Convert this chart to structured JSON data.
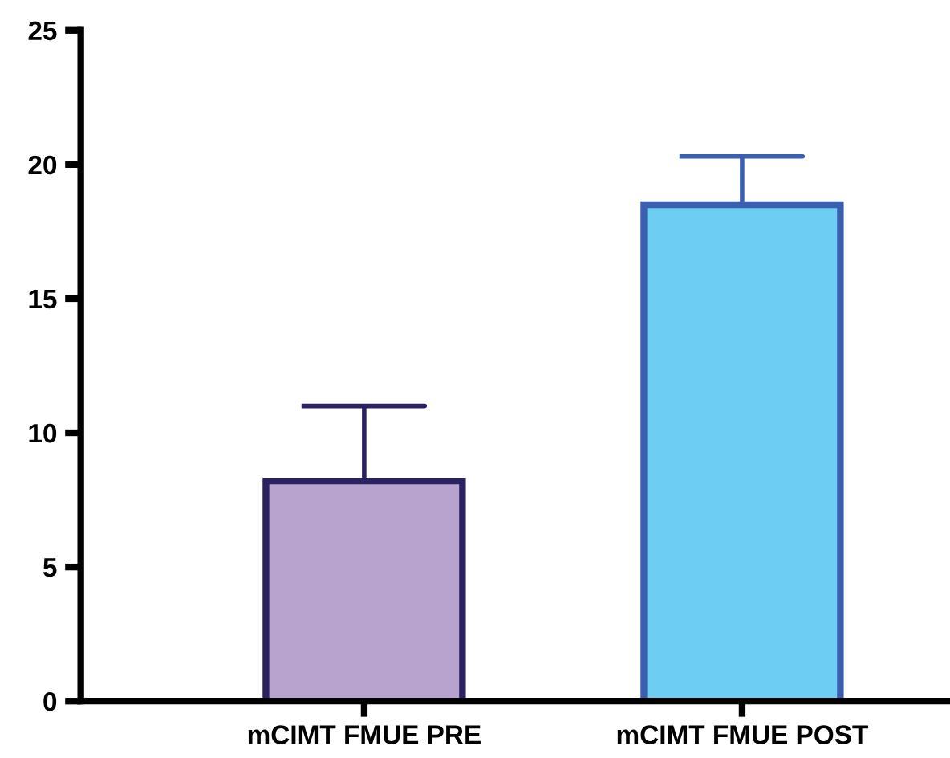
{
  "chart_data": {
    "type": "bar",
    "categories": [
      "mCIMT FMUE PRE",
      "mCIMT FMUE POST"
    ],
    "values": [
      8.2,
      18.5
    ],
    "errors": [
      2.8,
      1.8
    ],
    "colors": [
      "#b8a3cf",
      "#6ecdf2"
    ],
    "ylim": [
      0,
      25
    ],
    "yticks": [
      0,
      5,
      10,
      15,
      20,
      25
    ],
    "grid": false
  }
}
